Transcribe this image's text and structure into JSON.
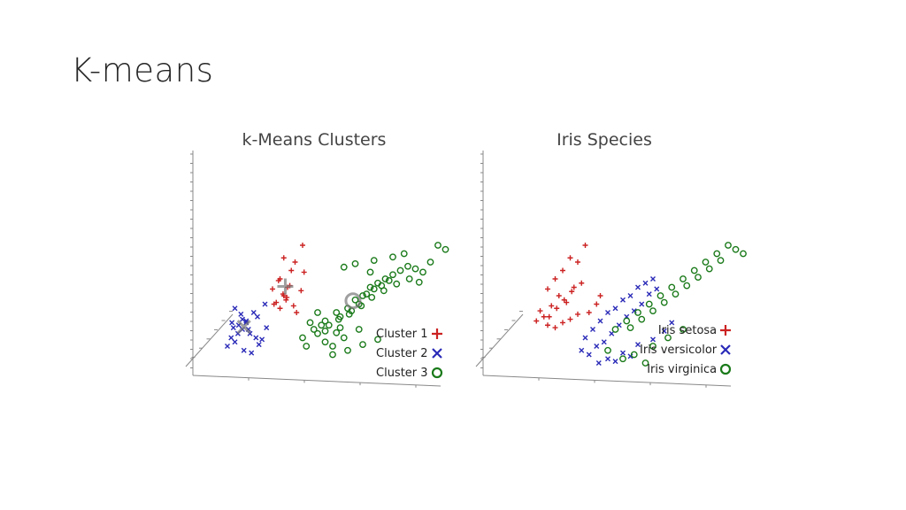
{
  "slide": {
    "title": "K-means"
  },
  "colors": {
    "setosa": "#cc2222",
    "versicolor": "#2a2ab8",
    "virginica": "#1a7a1a",
    "axis": "#888888"
  },
  "chart_data": [
    {
      "type": "scatter",
      "title": "k-Means Clusters",
      "xlabel": "",
      "ylabel": "",
      "zlabel": "",
      "legend_position": "bottom-right",
      "series": [
        {
          "name": "Cluster 1",
          "marker": "plus",
          "color": "#cc2222",
          "x": [
            80,
            90,
            105,
            95,
            110,
            120,
            100,
            85,
            95,
            108,
            98,
            90,
            82,
            112,
            103,
            94,
            88,
            122,
            118,
            99
          ],
          "y": [
            88,
            100,
            110,
            125,
            120,
            140,
            90,
            72,
            80,
            68,
            75,
            65,
            70,
            60,
            92,
            82,
            98,
            108,
            86,
            78
          ],
          "centroid": [
            97,
            91
          ]
        },
        {
          "name": "Cluster 2",
          "marker": "x",
          "color": "#2a2ab8",
          "x": [
            20,
            25,
            30,
            35,
            40,
            45,
            50,
            55,
            60,
            70,
            30,
            40,
            45,
            38,
            28,
            58,
            62,
            72,
            48,
            34,
            52,
            66,
            42,
            26
          ],
          "y": [
            20,
            30,
            25,
            45,
            40,
            50,
            35,
            60,
            55,
            70,
            65,
            52,
            48,
            58,
            42,
            30,
            22,
            42,
            40,
            35,
            12,
            28,
            15,
            48
          ],
          "centroid": [
            42,
            43
          ]
        },
        {
          "name": "Cluster 3",
          "marker": "circle",
          "color": "#1a7a1a",
          "x": [
            120,
            135,
            150,
            165,
            180,
            190,
            200,
            210,
            220,
            230,
            240,
            250,
            260,
            270,
            280,
            290,
            140,
            155,
            170,
            185,
            195,
            205,
            215,
            225,
            235,
            150,
            160,
            175,
            145,
            168,
            182,
            198,
            212,
            228,
            245,
            262,
            275,
            300,
            310,
            255,
            240,
            215,
            190,
            175,
            130,
            125,
            160,
            180,
            200,
            220,
            195,
            170,
            165,
            150,
            140,
            210
          ],
          "y": [
            30,
            40,
            50,
            60,
            65,
            75,
            80,
            90,
            95,
            100,
            105,
            110,
            115,
            112,
            108,
            120,
            35,
            45,
            55,
            62,
            70,
            82,
            88,
            92,
            98,
            25,
            20,
            30,
            45,
            52,
            58,
            68,
            78,
            86,
            94,
            100,
            96,
            140,
            135,
            130,
            126,
            122,
            118,
            114,
            48,
            20,
            10,
            15,
            22,
            28,
            40,
            42,
            36,
            38,
            60,
            108
          ],
          "centroid": [
            187,
            74
          ]
        }
      ]
    },
    {
      "type": "scatter",
      "title": "Iris Species",
      "xlabel": "",
      "ylabel": "",
      "zlabel": "",
      "legend_position": "bottom-right",
      "series": [
        {
          "name": "Iris setosa",
          "marker": "plus",
          "color": "#cc2222",
          "x": [
            60,
            70,
            80,
            90,
            100,
            110,
            95,
            85,
            75,
            65,
            50,
            55,
            45,
            60,
            70,
            80,
            90,
            100,
            115,
            125,
            130,
            105,
            92,
            82,
            72,
            62
          ],
          "y": [
            88,
            100,
            110,
            125,
            120,
            140,
            90,
            72,
            80,
            68,
            62,
            55,
            50,
            45,
            42,
            48,
            52,
            58,
            60,
            70,
            80,
            95,
            85,
            75,
            65,
            55
          ],
          "centroid": []
        },
        {
          "name": "Iris versicolor",
          "marker": "x",
          "color": "#2a2ab8",
          "x": [
            110,
            120,
            130,
            140,
            150,
            160,
            170,
            180,
            190,
            200,
            125,
            135,
            145,
            155,
            165,
            175,
            185,
            195,
            205,
            115,
            105,
            140,
            160,
            180,
            200,
            215,
            225,
            128,
            150,
            170
          ],
          "y": [
            30,
            40,
            50,
            60,
            65,
            75,
            80,
            90,
            95,
            100,
            20,
            25,
            35,
            45,
            55,
            62,
            70,
            82,
            88,
            10,
            15,
            5,
            12,
            22,
            28,
            38,
            48,
            0,
            2,
            8
          ],
          "centroid": []
        },
        {
          "name": "Iris virginica",
          "marker": "circle",
          "color": "#1a7a1a",
          "x": [
            150,
            165,
            180,
            195,
            210,
            225,
            240,
            255,
            270,
            285,
            300,
            170,
            185,
            200,
            215,
            230,
            245,
            260,
            275,
            290,
            310,
            320,
            200,
            220,
            240,
            160,
            140,
            175,
            190
          ],
          "y": [
            40,
            50,
            60,
            70,
            80,
            90,
            100,
            110,
            120,
            130,
            140,
            42,
            52,
            62,
            72,
            82,
            92,
            102,
            112,
            122,
            135,
            130,
            20,
            30,
            40,
            5,
            15,
            10,
            0
          ],
          "centroid": []
        }
      ]
    }
  ]
}
